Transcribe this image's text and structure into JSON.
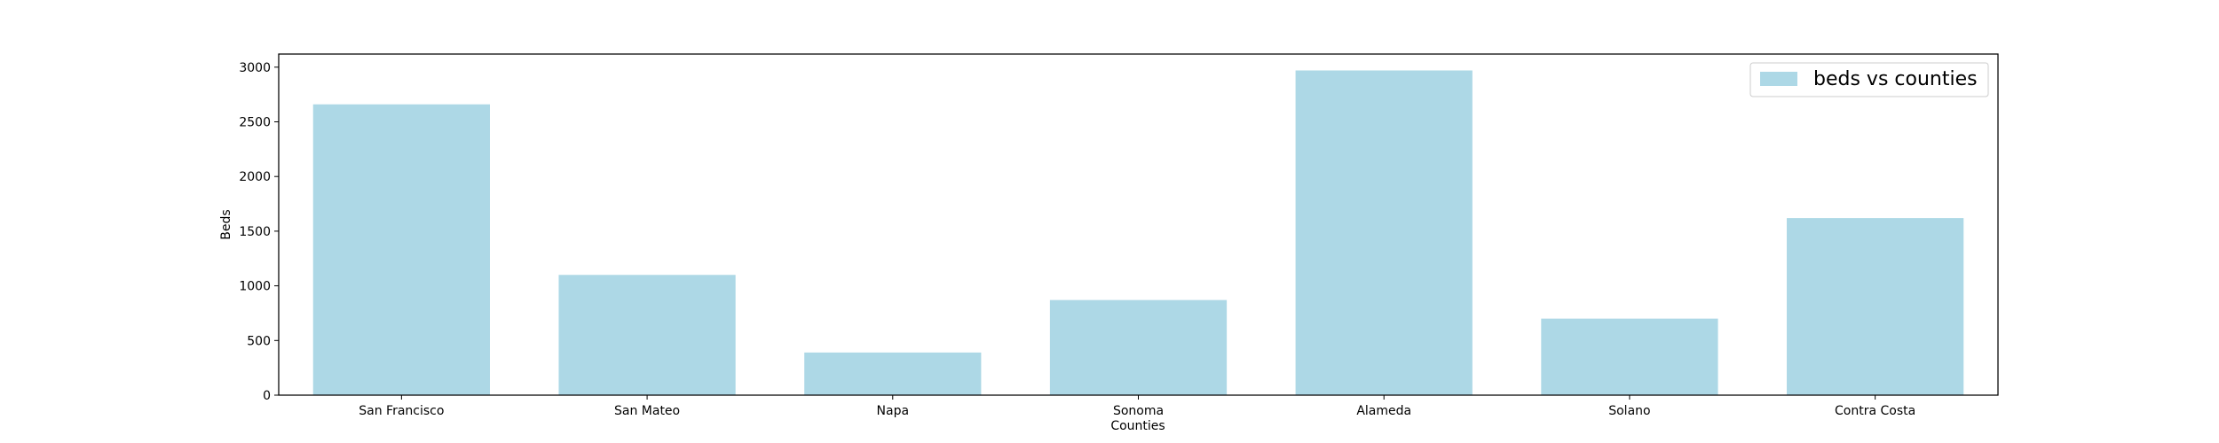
{
  "chart_data": {
    "type": "bar",
    "title": "",
    "xlabel": "Counties",
    "ylabel": "Beds",
    "categories": [
      "San Francisco",
      "San Mateo",
      "Napa",
      "Sonoma",
      "Alameda",
      "Solano",
      "Contra Costa"
    ],
    "series": [
      {
        "name": "beds vs counties",
        "values": [
          2660,
          1100,
          390,
          870,
          2970,
          700,
          1620
        ],
        "color": "#add8e6"
      }
    ],
    "ylim": [
      0,
      3120
    ],
    "yticks": [
      0,
      500,
      1000,
      1500,
      2000,
      2500,
      3000
    ],
    "grid": false,
    "legend_placement": "top-right"
  }
}
